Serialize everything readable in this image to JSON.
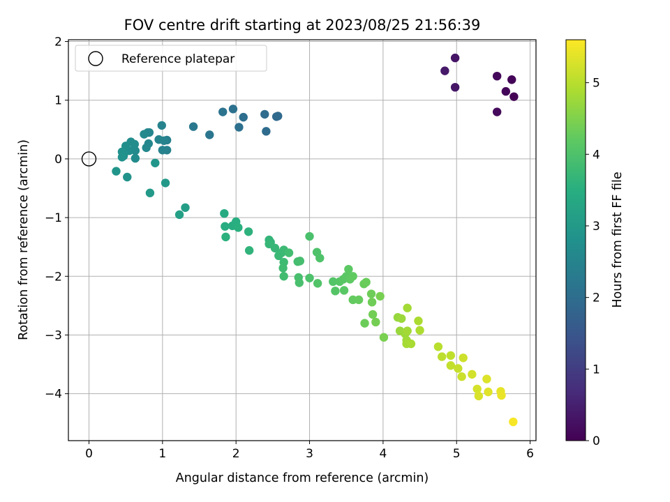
{
  "chart_data": {
    "type": "scatter",
    "title": "FOV centre drift starting at 2023/08/25 21:56:39",
    "xlabel": "Angular distance from reference (arcmin)",
    "ylabel": "Rotation from reference (arcmin)",
    "xlim": [
      -0.28,
      6.08
    ],
    "ylim": [
      -4.8,
      2.03
    ],
    "x_ticks": [
      0,
      1,
      2,
      3,
      4,
      5,
      6
    ],
    "y_ticks": [
      -4,
      -3,
      -2,
      -1,
      0,
      1,
      2
    ],
    "x_tick_labels": [
      "0",
      "1",
      "2",
      "3",
      "4",
      "5",
      "6"
    ],
    "y_tick_labels": [
      "−4",
      "−3",
      "−2",
      "−1",
      "0",
      "1",
      "2"
    ],
    "grid": true,
    "legend": {
      "placement": "top-left",
      "entries": [
        "Reference platepar"
      ]
    },
    "reference_point": {
      "x": 0,
      "y": 0
    },
    "colorbar": {
      "label": "Hours from first FF file",
      "colormap": "viridis",
      "range": [
        0,
        5.6
      ],
      "ticks": [
        0,
        1,
        2,
        3,
        4,
        5
      ],
      "tick_labels": [
        "0",
        "1",
        "2",
        "3",
        "4",
        "5"
      ]
    },
    "series": [
      {
        "columns": [
          "x",
          "y",
          "hours"
        ],
        "points": [
          [
            5.78,
            1.06,
            0.02
          ],
          [
            5.75,
            1.35,
            0.05
          ],
          [
            5.67,
            1.15,
            0.08
          ],
          [
            5.55,
            1.41,
            0.12
          ],
          [
            5.55,
            0.8,
            0.15
          ],
          [
            4.98,
            1.72,
            0.3
          ],
          [
            4.98,
            1.22,
            0.33
          ],
          [
            4.84,
            1.5,
            0.38
          ],
          [
            2.57,
            0.73,
            1.9
          ],
          [
            2.55,
            0.72,
            1.92
          ],
          [
            2.41,
            0.47,
            1.95
          ],
          [
            2.39,
            0.76,
            1.97
          ],
          [
            2.1,
            0.71,
            2.02
          ],
          [
            2.04,
            0.54,
            2.05
          ],
          [
            1.96,
            0.85,
            2.08
          ],
          [
            1.82,
            0.8,
            2.12
          ],
          [
            1.64,
            0.41,
            2.18
          ],
          [
            1.42,
            0.55,
            2.24
          ],
          [
            1.06,
            0.32,
            2.4
          ],
          [
            1.06,
            0.15,
            2.43
          ],
          [
            1.02,
            0.31,
            2.45
          ],
          [
            1.0,
            0.15,
            2.47
          ],
          [
            0.99,
            0.57,
            2.49
          ],
          [
            0.95,
            0.33,
            2.51
          ],
          [
            0.82,
            0.45,
            2.53
          ],
          [
            0.8,
            0.45,
            2.55
          ],
          [
            0.81,
            0.26,
            2.57
          ],
          [
            0.78,
            0.19,
            2.59
          ],
          [
            0.75,
            0.42,
            2.61
          ],
          [
            0.63,
            0.14,
            2.64
          ],
          [
            0.63,
            0.01,
            2.66
          ],
          [
            0.62,
            0.25,
            2.68
          ],
          [
            0.57,
            0.29,
            2.7
          ],
          [
            0.55,
            0.14,
            2.72
          ],
          [
            0.5,
            0.22,
            2.74
          ],
          [
            0.48,
            0.1,
            2.76
          ],
          [
            0.47,
            0.05,
            2.78
          ],
          [
            0.45,
            0.12,
            2.8
          ],
          [
            0.45,
            0.03,
            2.82
          ],
          [
            0.52,
            -0.31,
            2.86
          ],
          [
            0.37,
            -0.21,
            2.9
          ],
          [
            0.9,
            -0.07,
            2.93
          ],
          [
            1.04,
            -0.41,
            2.96
          ],
          [
            0.83,
            -0.58,
            3.0
          ],
          [
            1.31,
            -0.83,
            3.1
          ],
          [
            1.23,
            -0.95,
            3.15
          ],
          [
            1.84,
            -0.93,
            3.4
          ],
          [
            1.85,
            -1.15,
            3.45
          ],
          [
            1.95,
            -1.14,
            3.48
          ],
          [
            2.0,
            -1.07,
            3.5
          ],
          [
            2.03,
            -1.17,
            3.53
          ],
          [
            1.86,
            -1.33,
            3.55
          ],
          [
            2.17,
            -1.24,
            3.58
          ],
          [
            2.18,
            -1.56,
            3.62
          ],
          [
            2.45,
            -1.38,
            3.66
          ],
          [
            2.47,
            -1.42,
            3.68
          ],
          [
            2.45,
            -1.45,
            3.7
          ],
          [
            2.53,
            -1.52,
            3.72
          ],
          [
            2.58,
            -1.65,
            3.74
          ],
          [
            2.62,
            -1.6,
            3.76
          ],
          [
            2.65,
            -1.55,
            3.78
          ],
          [
            2.65,
            -1.76,
            3.8
          ],
          [
            2.64,
            -1.86,
            3.82
          ],
          [
            2.65,
            -2.0,
            3.84
          ],
          [
            2.72,
            -1.6,
            3.86
          ],
          [
            2.84,
            -1.75,
            3.88
          ],
          [
            2.87,
            -1.74,
            3.9
          ],
          [
            2.85,
            -2.02,
            3.92
          ],
          [
            2.86,
            -2.11,
            3.94
          ],
          [
            3.0,
            -1.32,
            3.96
          ],
          [
            3.0,
            -2.03,
            3.98
          ],
          [
            3.1,
            -1.59,
            4.0
          ],
          [
            3.14,
            -1.69,
            4.02
          ],
          [
            3.11,
            -2.12,
            4.04
          ],
          [
            3.32,
            -2.09,
            4.06
          ],
          [
            3.35,
            -2.25,
            4.08
          ],
          [
            3.41,
            -2.09,
            4.1
          ],
          [
            3.46,
            -2.05,
            4.12
          ],
          [
            3.47,
            -2.24,
            4.14
          ],
          [
            3.5,
            -2.0,
            4.16
          ],
          [
            3.53,
            -1.88,
            4.18
          ],
          [
            3.55,
            -2.05,
            4.2
          ],
          [
            3.59,
            -2.0,
            4.22
          ],
          [
            3.59,
            -2.4,
            4.24
          ],
          [
            3.67,
            -2.4,
            4.26
          ],
          [
            3.74,
            -2.13,
            4.28
          ],
          [
            3.77,
            -2.1,
            4.3
          ],
          [
            3.75,
            -2.8,
            4.32
          ],
          [
            3.84,
            -2.3,
            4.34
          ],
          [
            3.85,
            -2.44,
            4.36
          ],
          [
            3.86,
            -2.65,
            4.38
          ],
          [
            3.9,
            -2.78,
            4.4
          ],
          [
            3.96,
            -2.34,
            4.42
          ],
          [
            4.01,
            -3.04,
            4.44
          ],
          [
            4.2,
            -2.7,
            4.7
          ],
          [
            4.23,
            -2.93,
            4.72
          ],
          [
            4.25,
            -2.72,
            4.74
          ],
          [
            4.3,
            -2.98,
            4.76
          ],
          [
            4.32,
            -3.09,
            4.78
          ],
          [
            4.33,
            -2.93,
            4.8
          ],
          [
            4.33,
            -2.54,
            4.82
          ],
          [
            4.32,
            -3.15,
            4.84
          ],
          [
            4.38,
            -3.15,
            4.86
          ],
          [
            4.48,
            -2.76,
            4.88
          ],
          [
            4.5,
            -2.92,
            4.9
          ],
          [
            4.75,
            -3.2,
            5.0
          ],
          [
            4.8,
            -3.37,
            5.03
          ],
          [
            4.92,
            -3.35,
            5.06
          ],
          [
            4.92,
            -3.52,
            5.09
          ],
          [
            5.02,
            -3.57,
            5.12
          ],
          [
            5.07,
            -3.71,
            5.15
          ],
          [
            5.09,
            -3.39,
            5.18
          ],
          [
            5.21,
            -3.67,
            5.22
          ],
          [
            5.28,
            -3.92,
            5.25
          ],
          [
            5.3,
            -4.04,
            5.28
          ],
          [
            5.41,
            -3.75,
            5.32
          ],
          [
            5.43,
            -3.97,
            5.35
          ],
          [
            5.6,
            -3.96,
            5.4
          ],
          [
            5.61,
            -4.03,
            5.43
          ],
          [
            5.77,
            -4.48,
            5.55
          ]
        ]
      }
    ]
  }
}
